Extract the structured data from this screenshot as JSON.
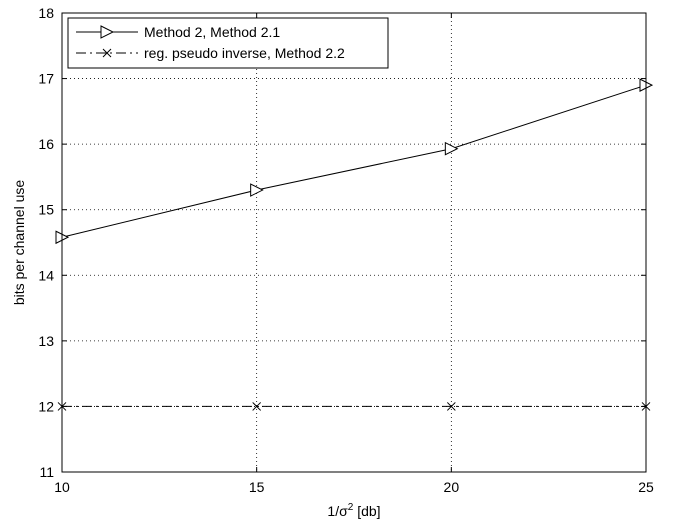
{
  "chart_data": {
    "type": "line",
    "xlabel": "1/σ² [db]",
    "xlabel_parts": {
      "pre": "1/σ",
      "sup": "2",
      "post": " [db]"
    },
    "ylabel": "bits per channel use",
    "xlim": [
      10,
      25
    ],
    "ylim": [
      11,
      18
    ],
    "xticks": [
      10,
      15,
      20,
      25
    ],
    "yticks": [
      11,
      12,
      13,
      14,
      15,
      16,
      17,
      18
    ],
    "grid": true,
    "legend_position": "top-left",
    "x": [
      10,
      15,
      20,
      25
    ],
    "series": [
      {
        "name": "Method 2, Method 2.1",
        "values": [
          14.58,
          15.3,
          15.93,
          16.9
        ],
        "line_style": "solid",
        "marker": "triangle-right",
        "color": "#000000"
      },
      {
        "name": "reg. pseudo inverse, Method 2.2",
        "values": [
          12.0,
          12.0,
          12.0,
          12.0
        ],
        "line_style": "dash-dot",
        "marker": "x",
        "color": "#000000"
      }
    ]
  }
}
